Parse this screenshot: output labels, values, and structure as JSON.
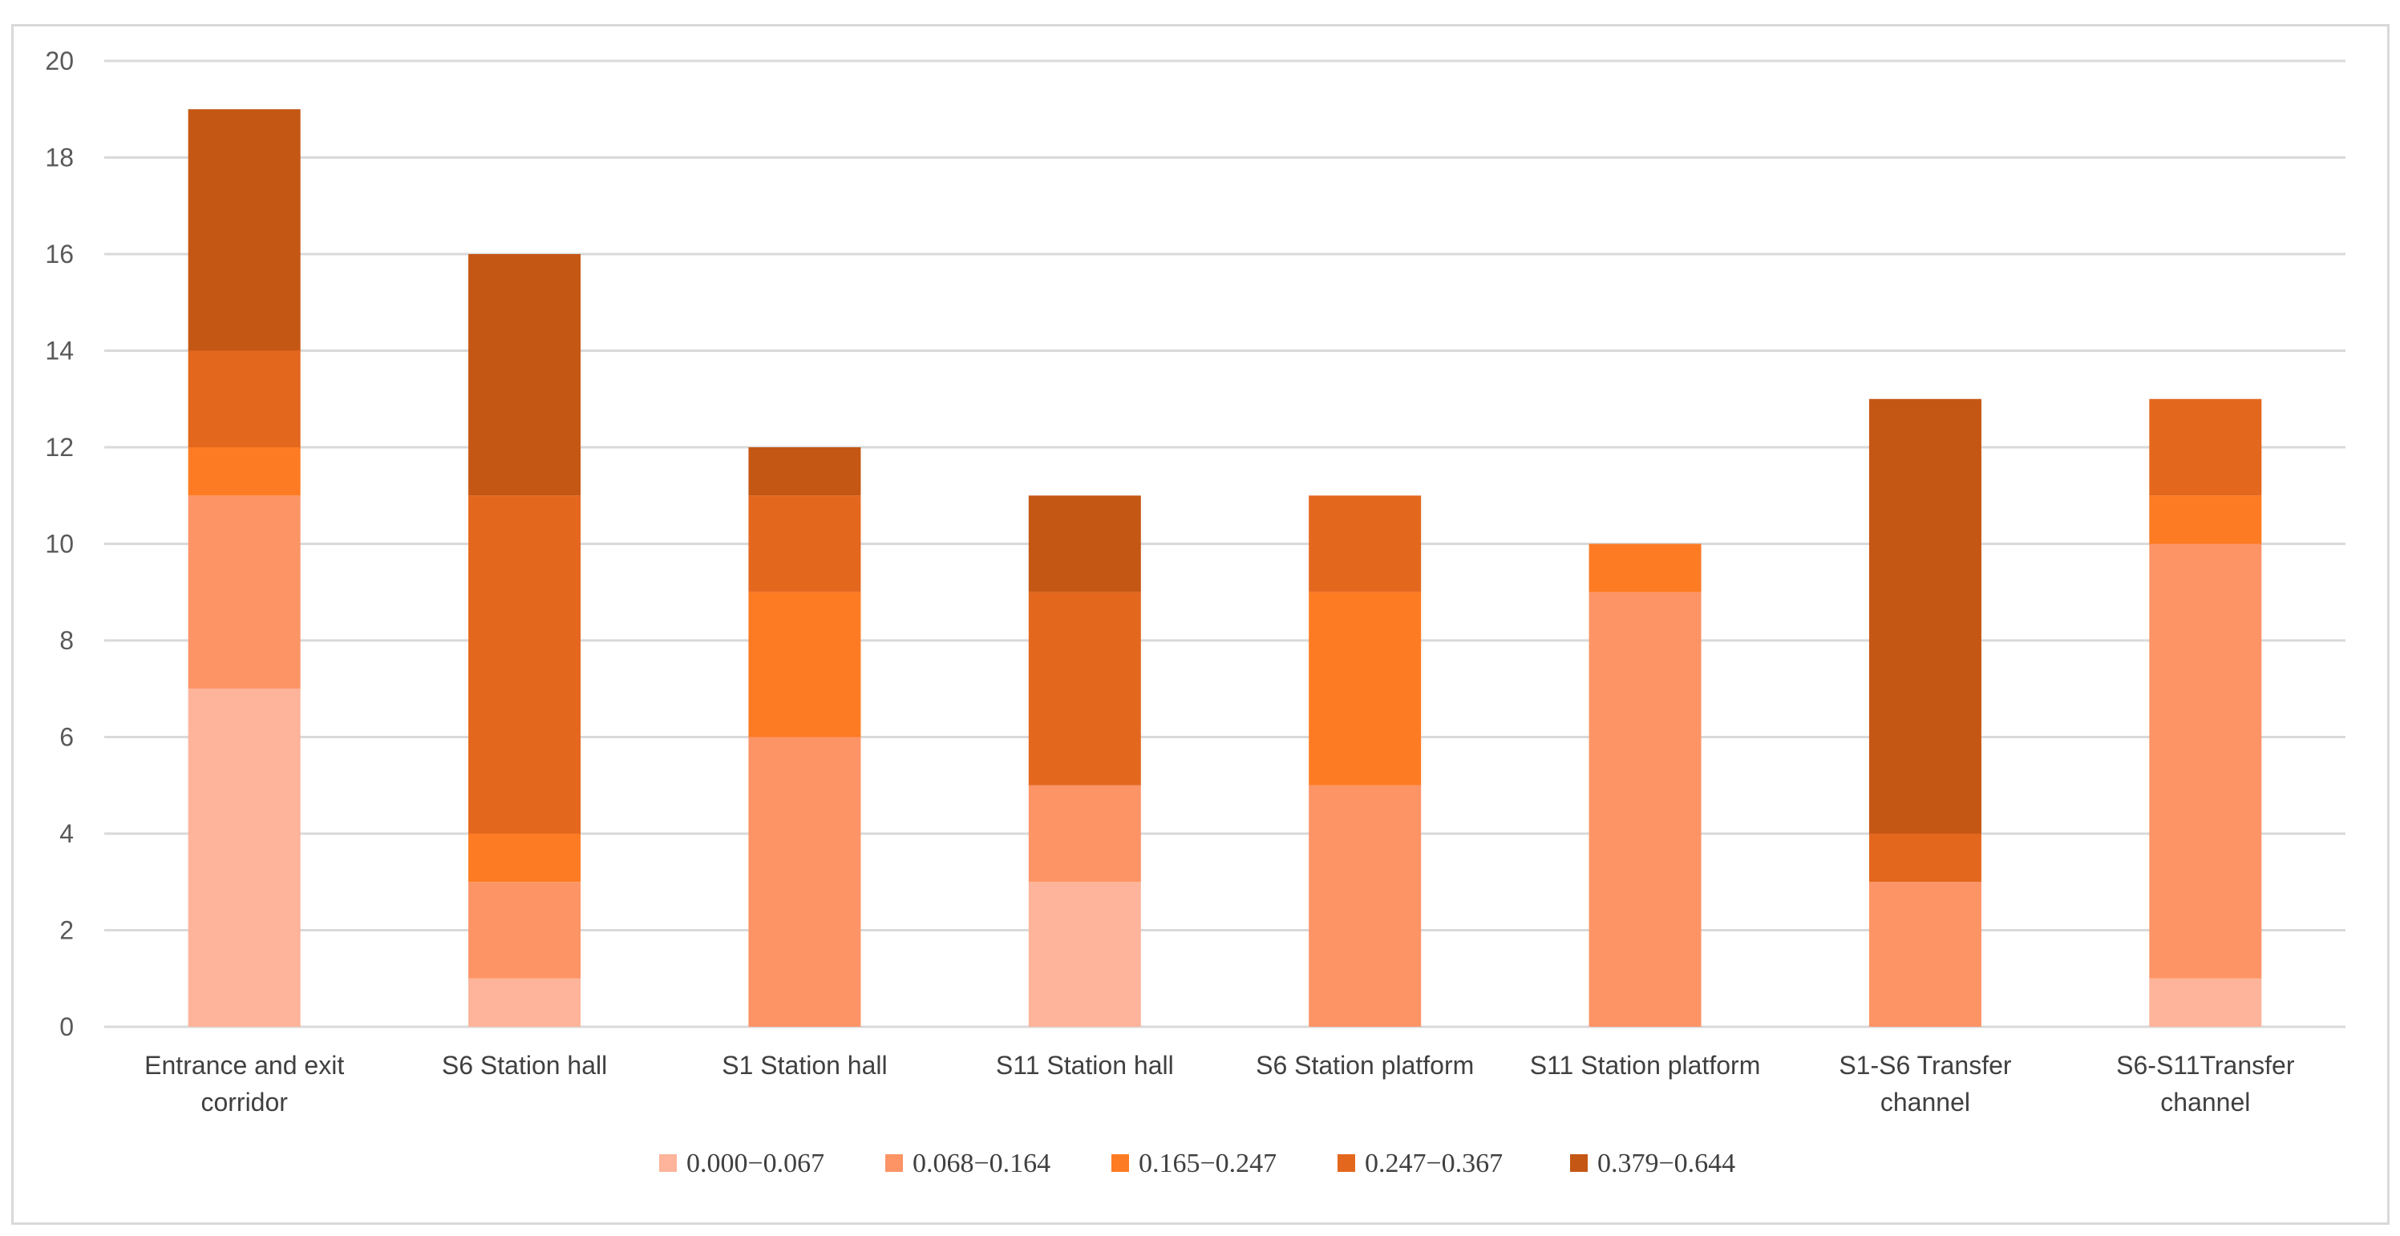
{
  "chart_data": {
    "type": "bar",
    "stacked": true,
    "categories": [
      [
        "Entrance and exit",
        "corridor"
      ],
      [
        "S6 Station hall"
      ],
      [
        "S1 Station hall"
      ],
      [
        "S11 Station hall"
      ],
      [
        "S6 Station platform"
      ],
      [
        "S11 Station platform"
      ],
      [
        "S1-S6 Transfer",
        "channel"
      ],
      [
        "S6-S11Transfer",
        "channel"
      ]
    ],
    "series": [
      {
        "name": "0.000−0.067",
        "color": "#fdb49a",
        "values": [
          7,
          1,
          0,
          3,
          0,
          0,
          0,
          1
        ]
      },
      {
        "name": "0.068−0.164",
        "color": "#fd9466",
        "values": [
          4,
          2,
          6,
          2,
          5,
          9,
          3,
          9
        ]
      },
      {
        "name": "0.165−0.247",
        "color": "#fd7b22",
        "values": [
          1,
          1,
          3,
          0,
          4,
          1,
          0,
          1
        ]
      },
      {
        "name": "0.247−0.367",
        "color": "#e4671e",
        "values": [
          2,
          7,
          2,
          4,
          2,
          0,
          1,
          2
        ]
      },
      {
        "name": "0.379−0.644",
        "color": "#c55714",
        "values": [
          5,
          5,
          1,
          2,
          0,
          0,
          9,
          0
        ]
      }
    ],
    "yticks": [
      0,
      2,
      4,
      6,
      8,
      10,
      12,
      14,
      16,
      18,
      20
    ],
    "ylim": [
      0,
      20
    ],
    "grid": true,
    "legend_position": "bottom",
    "title": "",
    "xlabel": "",
    "ylabel": ""
  }
}
